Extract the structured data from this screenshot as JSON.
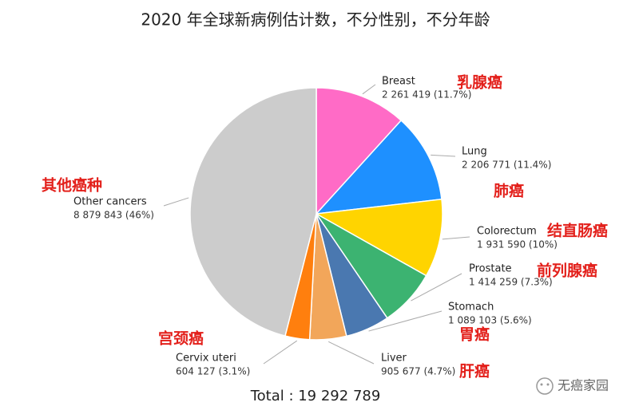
{
  "chart_data": {
    "type": "pie",
    "title": "2020 年全球新病例估计数，不分性别，不分年龄",
    "categories": [
      "Breast",
      "Lung",
      "Colorectum",
      "Prostate",
      "Stomach",
      "Liver",
      "Cervix uteri",
      "Other cancers"
    ],
    "values": [
      2261419,
      2206771,
      1931590,
      1414259,
      1089103,
      905677,
      604127,
      8879843
    ],
    "value_labels": [
      "2 261 419 (11.7%)",
      "2 206 771 (11.4%)",
      "1 931 590 (10%)",
      "1 414 259 (7.3%)",
      "1 089 103 (5.6%)",
      "905 677 (4.7%)",
      "604 127 (3.1%)",
      "8 879 843 (46%)"
    ],
    "colors": [
      "#ff6bc6",
      "#1e90ff",
      "#ffd400",
      "#3cb371",
      "#4a78b0",
      "#f2a65a",
      "#ff7f0e",
      "#cccccc"
    ],
    "annotations": [
      "乳腺癌",
      "肺癌",
      "结直肠癌",
      "前列腺癌",
      "胃癌",
      "肝癌",
      "宫颈癌",
      "其他癌种"
    ],
    "total": "Total : 19 292 789",
    "watermark": "无癌家园"
  }
}
